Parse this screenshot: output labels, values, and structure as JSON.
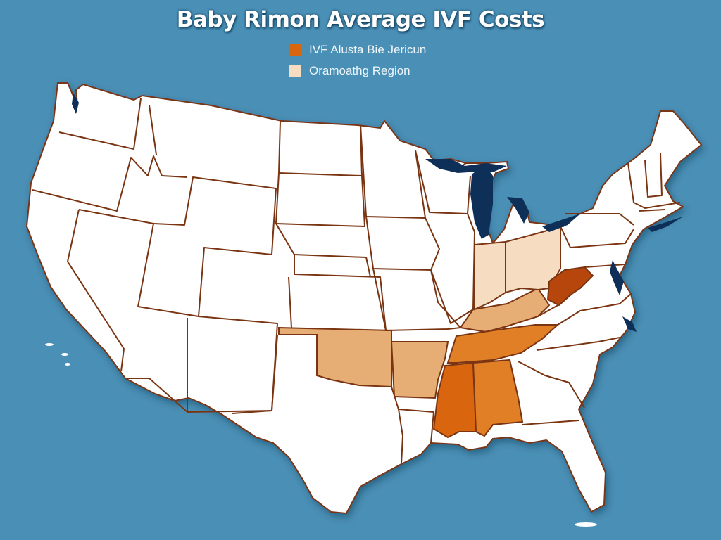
{
  "map": {
    "title": "Baby Rimon Average IVF Costs",
    "colors": {
      "ocean": "#4a8fb5",
      "land": "#ffffff",
      "border": "#7a3412",
      "water": "#0e2f57",
      "ivf_state": "#d9660f",
      "ivf_state_dark": "#b6460c",
      "ivf_state_mid": "#e07f25",
      "region_light": "#f6dcc0",
      "region_mid": "#e6ad74",
      "region_tan": "#e8c8a0"
    }
  },
  "legend": {
    "items": [
      {
        "label": "IVF Alusta Bie Jericun",
        "color": "#d9660f"
      },
      {
        "label": "Oramoathg Region",
        "color": "#f6dcc0"
      }
    ]
  }
}
